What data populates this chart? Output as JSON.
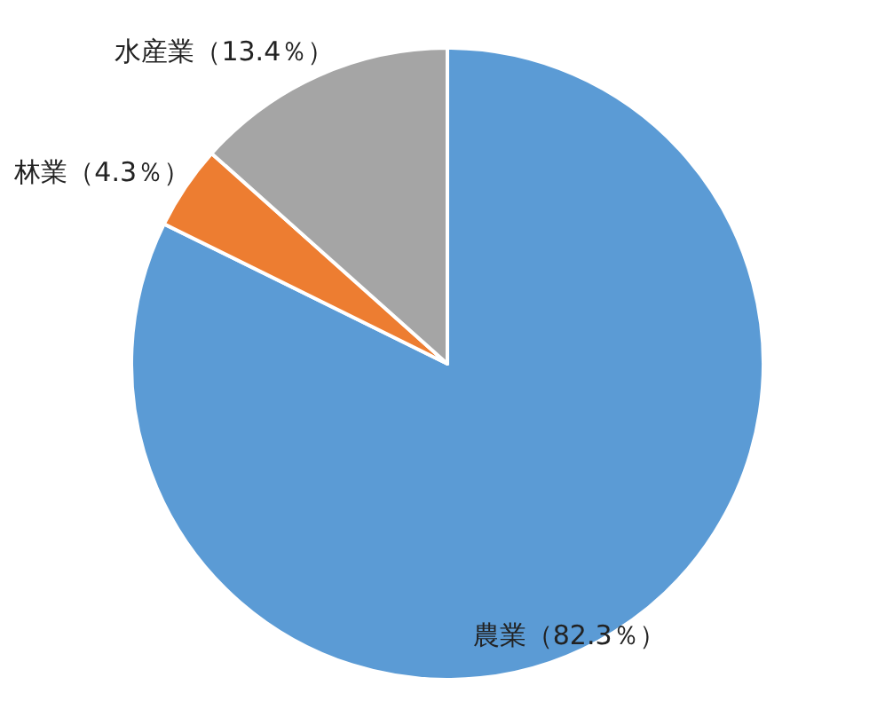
{
  "chart_data": {
    "type": "pie",
    "categories": [
      "農業（82.3％）",
      "林業（4.3％）",
      "水産業（13.4％）"
    ],
    "values": [
      82.3,
      4.3,
      13.4
    ],
    "colors": [
      "#5b9bd5",
      "#ed7d31",
      "#a5a5a5"
    ],
    "legend": false
  }
}
